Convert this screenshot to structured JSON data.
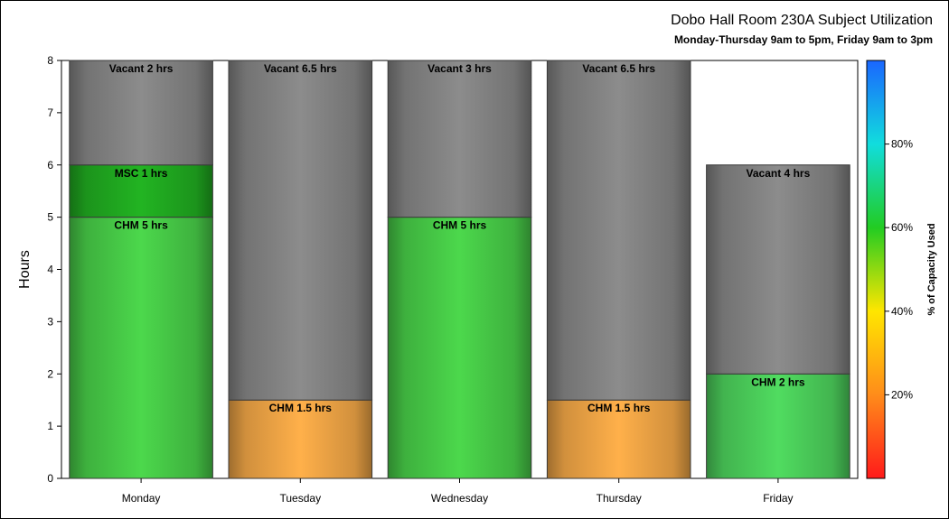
{
  "chart_data": {
    "type": "bar",
    "stacked": true,
    "title": "Dobo Hall Room 230A Subject Utilization",
    "subtitle": "Monday-Thursday 9am to 5pm, Friday 9am to 3pm",
    "ylabel": "Hours",
    "xlabel": "",
    "ylim": [
      0,
      8
    ],
    "yticks": [
      "0",
      "1",
      "2",
      "3",
      "4",
      "5",
      "6",
      "7",
      "8"
    ],
    "categories": [
      "Monday",
      "Tuesday",
      "Wednesday",
      "Thursday",
      "Friday"
    ],
    "bars": [
      {
        "category": "Monday",
        "segments": [
          {
            "value": 5,
            "label": "CHM 5 hrs",
            "fill": "#4cd84c"
          },
          {
            "value": 1,
            "label": "MSC 1 hrs",
            "fill": "#22b422"
          },
          {
            "value": 2,
            "label": "Vacant 2 hrs",
            "fill": "#8c8c8c"
          }
        ]
      },
      {
        "category": "Tuesday",
        "segments": [
          {
            "value": 1.5,
            "label": "CHM 1.5 hrs",
            "fill": "#ffb04a"
          },
          {
            "value": 6.5,
            "label": "Vacant 6.5 hrs",
            "fill": "#8c8c8c"
          }
        ]
      },
      {
        "category": "Wednesday",
        "segments": [
          {
            "value": 5,
            "label": "CHM 5 hrs",
            "fill": "#4cd84c"
          },
          {
            "value": 3,
            "label": "Vacant 3 hrs",
            "fill": "#8c8c8c"
          }
        ]
      },
      {
        "category": "Thursday",
        "segments": [
          {
            "value": 1.5,
            "label": "CHM 1.5 hrs",
            "fill": "#ffb04a"
          },
          {
            "value": 6.5,
            "label": "Vacant 6.5 hrs",
            "fill": "#8c8c8c"
          }
        ]
      },
      {
        "category": "Friday",
        "segments": [
          {
            "value": 2,
            "label": "CHM 2 hrs",
            "fill": "#50dc60"
          },
          {
            "value": 4,
            "label": "Vacant 4 hrs",
            "fill": "#8c8c8c"
          }
        ]
      }
    ],
    "colorbar": {
      "label": "% of Capacity Used",
      "ticks": [
        "20%",
        "40%",
        "60%",
        "80%"
      ],
      "tick_values": [
        20,
        40,
        60,
        80
      ],
      "range": [
        0,
        100
      ],
      "colors": [
        "#ff1a1a",
        "#ff8c1a",
        "#ffe600",
        "#22cc22",
        "#11dddd",
        "#1a66ff"
      ]
    },
    "grid": false,
    "legend": "right"
  }
}
